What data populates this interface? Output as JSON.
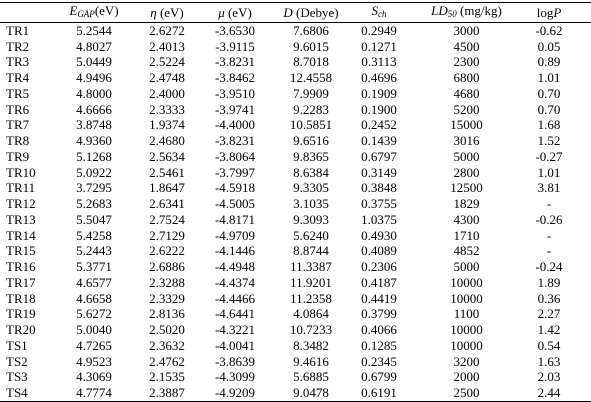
{
  "table": {
    "header": [
      [
        [
          "E",
          "i"
        ],
        [
          "GAP",
          "sub"
        ],
        [
          "(eV)",
          "n"
        ]
      ],
      [
        [
          "η",
          "i"
        ],
        [
          " (eV)",
          "n"
        ]
      ],
      [
        [
          "μ",
          "i"
        ],
        [
          " (eV)",
          "n"
        ]
      ],
      [
        [
          "D",
          "i"
        ],
        [
          " (Debye)",
          "n"
        ]
      ],
      [
        [
          "S",
          "i"
        ],
        [
          "ch",
          "sub"
        ]
      ],
      [
        [
          "LD",
          "i"
        ],
        [
          "50",
          "sub"
        ],
        [
          " (mg/kg)",
          "n"
        ]
      ],
      [
        [
          "log",
          "n"
        ],
        [
          "P",
          "i"
        ]
      ]
    ],
    "rows": [
      [
        "TR1",
        "5.2544",
        "2.6272",
        "-3.6530",
        "7.6806",
        "0.2949",
        "3000",
        "-0.62"
      ],
      [
        "TR2",
        "4.8027",
        "2.4013",
        "-3.9115",
        "9.6015",
        "0.1271",
        "4500",
        "0.05"
      ],
      [
        "TR3",
        "5.0449",
        "2.5224",
        "-3.8231",
        "8.7018",
        "0.3113",
        "2300",
        "0.89"
      ],
      [
        "TR4",
        "4.9496",
        "2.4748",
        "-3.8462",
        "12.4558",
        "0.4696",
        "6800",
        "1.01"
      ],
      [
        "TR5",
        "4.8000",
        "2.4000",
        "-3.9510",
        "7.9909",
        "0.1909",
        "4680",
        "0.70"
      ],
      [
        "TR6",
        "4.6666",
        "2.3333",
        "-3.9741",
        "9.2283",
        "0.1900",
        "5200",
        "0.70"
      ],
      [
        "TR7",
        "3.8748",
        "1.9374",
        "-4.4000",
        "10.5851",
        "0.2452",
        "15000",
        "1.68"
      ],
      [
        "TR8",
        "4.9360",
        "2.4680",
        "-3.8231",
        "9.6516",
        "0.1439",
        "3016",
        "1.52"
      ],
      [
        "TR9",
        "5.1268",
        "2.5634",
        "-3.8064",
        "9.8365",
        "0.6797",
        "5000",
        "-0.27"
      ],
      [
        "TR10",
        "5.0922",
        "2.5461",
        "-3.7997",
        "8.6384",
        "0.3149",
        "2800",
        "1.01"
      ],
      [
        "TR11",
        "3.7295",
        "1.8647",
        "-4.5918",
        "9.3305",
        "0.3848",
        "12500",
        "3.81"
      ],
      [
        "TR12",
        "5.2683",
        "2.6341",
        "-4.5005",
        "3.1035",
        "0.3755",
        "1829",
        "-"
      ],
      [
        "TR13",
        "5.5047",
        "2.7524",
        "-4.8171",
        "9.3093",
        "1.0375",
        "4300",
        "-0.26"
      ],
      [
        "TR14",
        "5.4258",
        "2.7129",
        "-4.9709",
        "5.6240",
        "0.4930",
        "1710",
        "-"
      ],
      [
        "TR15",
        "5.2443",
        "2.6222",
        "-4.1446",
        "8.8744",
        "0.4089",
        "4852",
        "-"
      ],
      [
        "TR16",
        "5.3771",
        "2.6886",
        "-4.4948",
        "11.3387",
        "0.2306",
        "5000",
        "-0.24"
      ],
      [
        "TR17",
        "4.6577",
        "2.3288",
        "-4.4374",
        "11.9201",
        "0.4187",
        "10000",
        "1.89"
      ],
      [
        "TR18",
        "4.6658",
        "2.3329",
        "-4.4466",
        "11.2358",
        "0.4419",
        "10000",
        "0.36"
      ],
      [
        "TR19",
        "5.6272",
        "2.8136",
        "-4.6441",
        "4.0864",
        "0.3799",
        "1100",
        "2.27"
      ],
      [
        "TR20",
        "5.0040",
        "2.5020",
        "-4.3221",
        "10.7233",
        "0.4066",
        "10000",
        "1.42"
      ],
      [
        "TS1",
        "4.7265",
        "2.3632",
        "-4.0041",
        "8.3482",
        "0.1285",
        "10000",
        "0.54"
      ],
      [
        "TS2",
        "4.9523",
        "2.4762",
        "-3.8639",
        "9.4616",
        "0.2345",
        "3200",
        "1.63"
      ],
      [
        "TS3",
        "4.3069",
        "2.1535",
        "-4.3099",
        "5.6885",
        "0.6799",
        "2000",
        "2.03"
      ],
      [
        "TS4",
        "4.7774",
        "2.3887",
        "-4.9209",
        "9.0478",
        "0.6191",
        "2500",
        "2.44"
      ]
    ]
  }
}
